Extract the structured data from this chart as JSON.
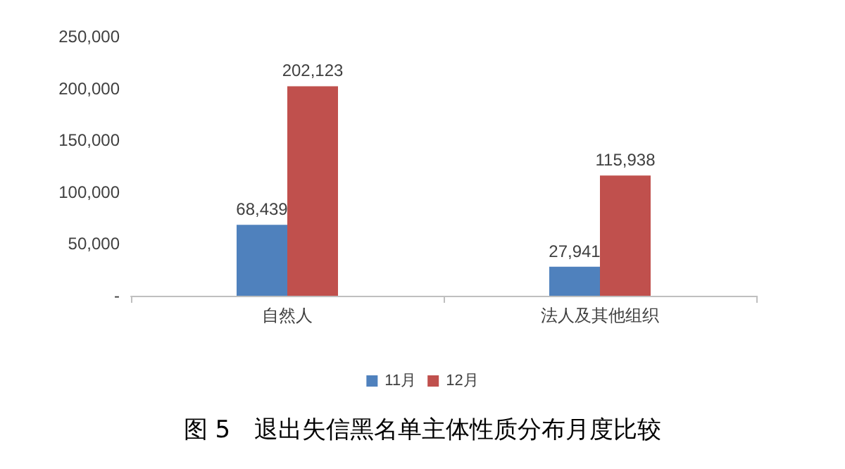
{
  "chart_data": {
    "type": "bar",
    "title": "图 5　退出失信黑名单主体性质分布月度比较",
    "categories": [
      "自然人",
      "法人及其他组织"
    ],
    "series": [
      {
        "name": "11月",
        "color": "#4f81bd",
        "values": [
          68439,
          27941
        ],
        "value_labels": [
          "68,439",
          "27,941"
        ]
      },
      {
        "name": "12月",
        "color": "#c0504d",
        "values": [
          202123,
          115938
        ],
        "value_labels": [
          "202,123",
          "115,938"
        ]
      }
    ],
    "ylim": [
      0,
      250000
    ],
    "yticks": [
      {
        "value": 0,
        "label": "-"
      },
      {
        "value": 50000,
        "label": "50,000"
      },
      {
        "value": 100000,
        "label": "100,000"
      },
      {
        "value": 150000,
        "label": "150,000"
      },
      {
        "value": 200000,
        "label": "200,000"
      },
      {
        "value": 250000,
        "label": "250,000"
      }
    ],
    "grid": false,
    "legend": "bottom"
  }
}
